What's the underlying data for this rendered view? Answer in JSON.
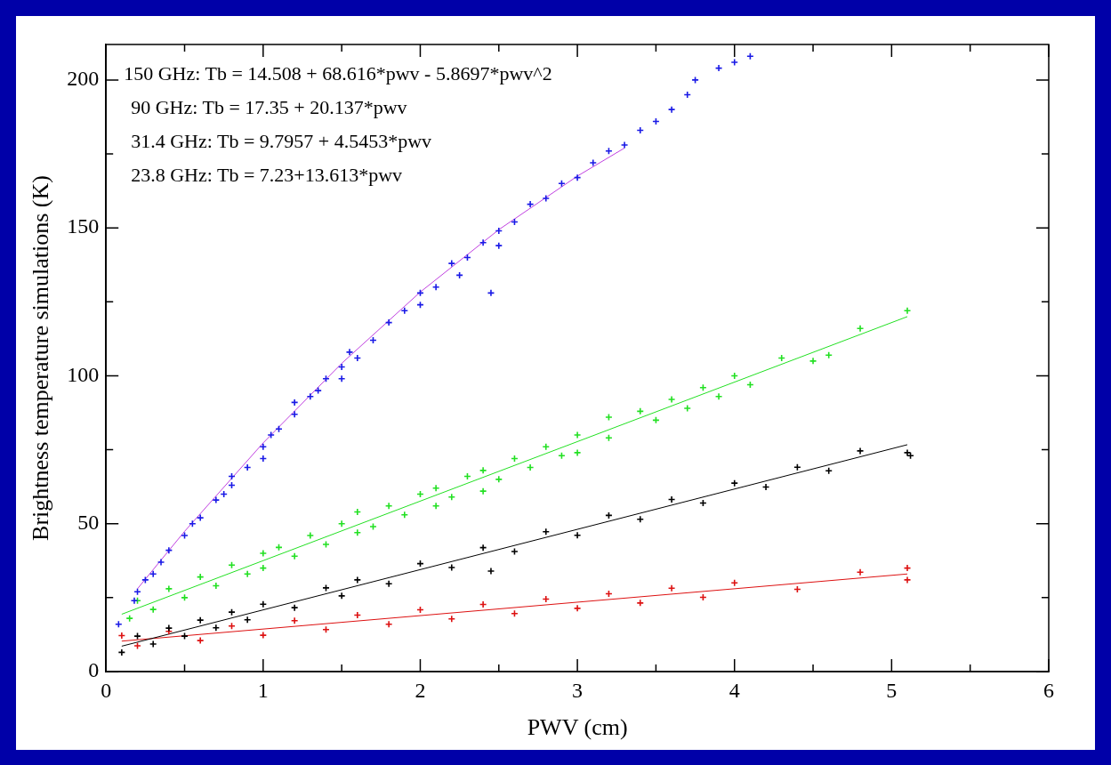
{
  "chart_data": {
    "type": "scatter",
    "xlabel": "PWV (cm)",
    "ylabel": "Brightness temperature simulations (K)",
    "annotations": [
      "150 GHz: Tb = 14.508 + 68.616*pwv - 5.8697*pwv^2",
      "90 GHz: Tb = 17.35 + 20.137*pwv",
      "31.4 GHz: Tb = 9.7957 + 4.5453*pwv",
      "23.8 GHz: Tb = 7.23+13.613*pwv"
    ],
    "xlim": [
      0,
      6
    ],
    "ylim": [
      0,
      212
    ],
    "xticks": [
      0,
      {
        "value": 0.5,
        "label": null
      },
      1,
      {
        "value": 1.5,
        "label": null
      },
      2,
      {
        "value": 2.5,
        "label": null
      },
      3,
      {
        "value": 3.5,
        "label": null
      },
      4,
      {
        "value": 4.5,
        "label": null
      },
      5,
      {
        "value": 5.5,
        "label": null
      },
      6
    ],
    "yticks": [
      0,
      {
        "value": 25,
        "label": null
      },
      50,
      {
        "value": 75,
        "label": null
      },
      100,
      {
        "value": 125,
        "label": null
      },
      150,
      {
        "value": 175,
        "label": null
      },
      200
    ],
    "marker": "cross",
    "grid": false,
    "legend": false,
    "series": [
      {
        "color": "#1a1ae6",
        "x": [
          0.08,
          0.18,
          0.2,
          0.25,
          0.3,
          0.35,
          0.4,
          0.5,
          0.55,
          0.6,
          0.7,
          0.75,
          0.8,
          0.8,
          0.9,
          1.0,
          1.0,
          1.05,
          1.1,
          1.2,
          1.2,
          1.3,
          1.35,
          1.4,
          1.5,
          1.5,
          1.55,
          1.6,
          1.7,
          1.8,
          1.9,
          2.0,
          2.0,
          2.1,
          2.2,
          2.25,
          2.3,
          2.4,
          2.45,
          2.5,
          2.5,
          2.6,
          2.7,
          2.8,
          2.9,
          3.0,
          3.1,
          3.2,
          3.3,
          3.4,
          3.5,
          3.6,
          3.7,
          3.75,
          3.9,
          4.0,
          4.1
        ],
        "values": [
          16,
          24,
          27,
          31,
          33,
          37,
          41,
          46,
          50,
          52,
          58,
          60,
          63,
          66,
          69,
          76,
          72,
          80,
          82,
          87,
          91,
          93,
          95,
          99,
          103,
          99,
          108,
          106,
          112,
          118,
          122,
          128,
          124,
          130,
          138,
          134,
          140,
          145,
          128,
          149,
          144,
          152,
          158,
          160,
          165,
          167,
          172,
          176,
          178,
          183,
          186,
          190,
          195,
          200,
          204,
          206,
          208
        ]
      },
      {
        "color": "#22e022",
        "x": [
          0.15,
          0.2,
          0.3,
          0.4,
          0.5,
          0.6,
          0.7,
          0.8,
          0.9,
          1.0,
          1.0,
          1.1,
          1.2,
          1.3,
          1.4,
          1.5,
          1.6,
          1.6,
          1.7,
          1.8,
          1.9,
          2.0,
          2.1,
          2.1,
          2.2,
          2.3,
          2.4,
          2.4,
          2.5,
          2.6,
          2.7,
          2.8,
          2.9,
          3.0,
          3.0,
          3.2,
          3.2,
          3.4,
          3.5,
          3.6,
          3.7,
          3.8,
          3.9,
          4.0,
          4.1,
          4.3,
          4.5,
          4.6,
          4.8,
          5.1
        ],
        "values": [
          18,
          24,
          21,
          28,
          25,
          32,
          29,
          36,
          33,
          40,
          35,
          42,
          39,
          46,
          43,
          50,
          47,
          54,
          49,
          56,
          53,
          60,
          62,
          56,
          59,
          66,
          68,
          61,
          65,
          72,
          69,
          76,
          73,
          80,
          74,
          86,
          79,
          88,
          85,
          92,
          89,
          96,
          93,
          100,
          97,
          106,
          105,
          107,
          116,
          122
        ]
      },
      {
        "color": "#000000",
        "x": [
          0.1,
          0.2,
          0.3,
          0.4,
          0.5,
          0.6,
          0.7,
          0.8,
          0.9,
          1.0,
          1.2,
          1.4,
          1.5,
          1.6,
          1.8,
          2.0,
          2.2,
          2.4,
          2.45,
          2.6,
          2.8,
          3.0,
          3.2,
          3.4,
          3.6,
          3.8,
          4.0,
          4.2,
          4.4,
          4.6,
          4.8,
          5.1,
          5.12
        ],
        "values": [
          6.5,
          12,
          9.3,
          14.7,
          12,
          17.4,
          14.8,
          20.1,
          17.5,
          22.8,
          21.6,
          28.3,
          25.6,
          31,
          29.7,
          36.5,
          35.2,
          41.9,
          34,
          40.6,
          47.3,
          46.1,
          52.8,
          51.5,
          58.2,
          57,
          63.7,
          62.4,
          69.1,
          67.9,
          74.6,
          74,
          73
        ]
      },
      {
        "color": "#dd1111",
        "x": [
          0.1,
          0.2,
          0.4,
          0.6,
          0.8,
          1.0,
          1.2,
          1.4,
          1.6,
          1.8,
          2.0,
          2.2,
          2.4,
          2.6,
          2.8,
          3.0,
          3.2,
          3.4,
          3.6,
          3.8,
          4.0,
          4.4,
          4.8,
          5.1,
          5.1
        ],
        "values": [
          12.2,
          8.7,
          13.6,
          10.5,
          15.4,
          12.3,
          17.2,
          14.2,
          19.1,
          16,
          20.9,
          17.8,
          22.7,
          19.6,
          24.5,
          21.4,
          26.3,
          23.2,
          28.2,
          25.1,
          30,
          27.8,
          33.6,
          35,
          31
        ]
      },
      {
        "type": "line",
        "marker": "none",
        "color": "#c040e0",
        "x": [
          0.2,
          0.5,
          1.0,
          1.5,
          2.0,
          2.5,
          3.0,
          3.3
        ],
        "values": [
          28,
          47.4,
          77.3,
          104.2,
          128.3,
          149.4,
          167.5,
          177
        ]
      },
      {
        "type": "line",
        "marker": "none",
        "color": "#22e022",
        "x": [
          0.1,
          5.1
        ],
        "values": [
          19.4,
          120
        ]
      },
      {
        "type": "line",
        "marker": "none",
        "color": "#000000",
        "x": [
          0.1,
          5.1
        ],
        "values": [
          8.6,
          76.7
        ]
      },
      {
        "type": "line",
        "marker": "none",
        "color": "#dd1111",
        "x": [
          0.1,
          5.1
        ],
        "values": [
          10.3,
          33
        ]
      }
    ]
  }
}
